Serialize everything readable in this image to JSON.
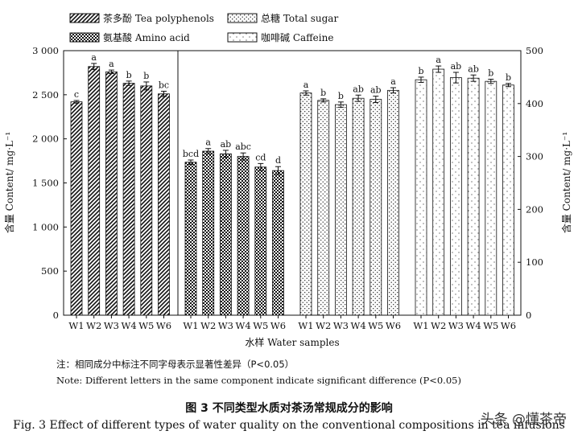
{
  "chart_data": {
    "type": "bar",
    "categories": [
      "W1",
      "W2",
      "W3",
      "W4",
      "W5",
      "W6"
    ],
    "xlabel": "水样  Water samples",
    "ylabel_left": "含量  Content/ mg·L⁻¹",
    "ylabel_right": "含量  Content/ mg·L⁻¹",
    "ylim_left": [
      0,
      3000
    ],
    "ylim_right": [
      0,
      500
    ],
    "yticks_left": [
      "0",
      "500",
      "1 000",
      "1 500",
      "2 000",
      "2 500",
      "3 000"
    ],
    "yticks_right": [
      "0",
      "100",
      "200",
      "300",
      "400",
      "500"
    ],
    "legend_placement": "top",
    "series": [
      {
        "name": "茶多酚  Tea polyphenols",
        "axis": "left",
        "pattern": "diag",
        "values": [
          2420,
          2820,
          2760,
          2630,
          2600,
          2510
        ],
        "errors": [
          15,
          35,
          20,
          25,
          45,
          30
        ],
        "letters": [
          "c",
          "a",
          "a",
          "b",
          "b",
          "bc"
        ]
      },
      {
        "name": "氨基酸  Amino acid",
        "axis": "left",
        "pattern": "check",
        "values": [
          1735,
          1860,
          1830,
          1800,
          1680,
          1640
        ],
        "errors": [
          25,
          30,
          40,
          40,
          40,
          45
        ],
        "letters": [
          "bcd",
          "a",
          "ab",
          "abc",
          "cd",
          "d"
        ]
      },
      {
        "name": "总糖  Total sugar",
        "axis": "right",
        "pattern": "dots",
        "values": [
          420,
          406,
          398,
          410,
          408,
          425
        ],
        "errors": [
          4,
          3,
          5,
          6,
          6,
          5
        ],
        "letters": [
          "a",
          "b",
          "b",
          "ab",
          "ab",
          "a"
        ]
      },
      {
        "name": "咖啡碱  Caffeine",
        "axis": "right",
        "pattern": "sparse",
        "values": [
          445,
          465,
          449,
          448,
          442,
          435
        ],
        "errors": [
          5,
          6,
          10,
          6,
          4,
          3
        ],
        "letters": [
          "b",
          "a",
          "ab",
          "ab",
          "b",
          "b"
        ]
      }
    ]
  },
  "notes": {
    "zh": "注：相同成分中标注不同字母表示显著性差异（P<0.05）",
    "en": "Note: Different letters in the same component indicate significant difference (P<0.05)"
  },
  "caption": {
    "zh": "图 3  不同类型水质对茶汤常规成分的影响",
    "en": "Fig. 3 Effect of different types of water quality on the conventional compositions in tea infusions"
  },
  "watermark": "头条 @懂茶帝"
}
